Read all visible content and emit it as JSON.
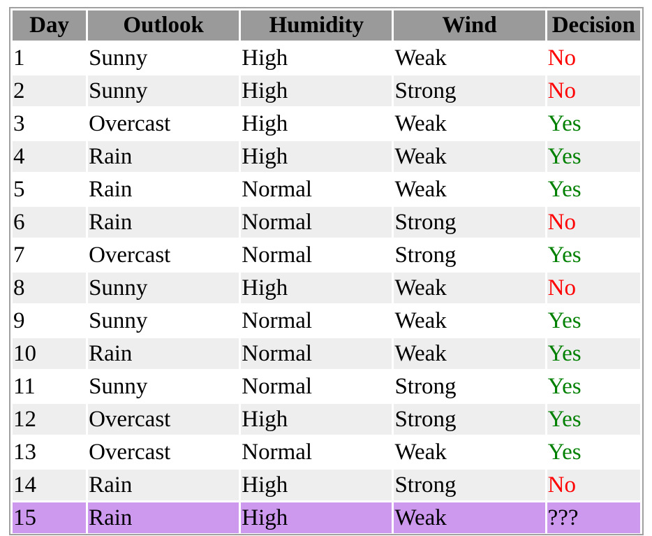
{
  "table": {
    "headers": [
      "Day",
      "Outlook",
      "Humidity",
      "Wind",
      "Decision"
    ],
    "rows": [
      {
        "day": "1",
        "outlook": "Sunny",
        "humidity": "High",
        "wind": "Weak",
        "decision": "No"
      },
      {
        "day": "2",
        "outlook": "Sunny",
        "humidity": "High",
        "wind": "Strong",
        "decision": "No"
      },
      {
        "day": "3",
        "outlook": "Overcast",
        "humidity": "High",
        "wind": "Weak",
        "decision": "Yes"
      },
      {
        "day": "4",
        "outlook": "Rain",
        "humidity": "High",
        "wind": "Weak",
        "decision": "Yes"
      },
      {
        "day": "5",
        "outlook": "Rain",
        "humidity": "Normal",
        "wind": "Weak",
        "decision": "Yes"
      },
      {
        "day": "6",
        "outlook": "Rain",
        "humidity": "Normal",
        "wind": "Strong",
        "decision": "No"
      },
      {
        "day": "7",
        "outlook": "Overcast",
        "humidity": "Normal",
        "wind": "Strong",
        "decision": "Yes"
      },
      {
        "day": "8",
        "outlook": "Sunny",
        "humidity": "High",
        "wind": "Weak",
        "decision": "No"
      },
      {
        "day": "9",
        "outlook": "Sunny",
        "humidity": "Normal",
        "wind": "Weak",
        "decision": "Yes"
      },
      {
        "day": "10",
        "outlook": "Rain",
        "humidity": "Normal",
        "wind": "Weak",
        "decision": "Yes"
      },
      {
        "day": "11",
        "outlook": "Sunny",
        "humidity": "Normal",
        "wind": "Strong",
        "decision": "Yes"
      },
      {
        "day": "12",
        "outlook": "Overcast",
        "humidity": "High",
        "wind": "Strong",
        "decision": "Yes"
      },
      {
        "day": "13",
        "outlook": "Overcast",
        "humidity": "Normal",
        "wind": "Weak",
        "decision": "Yes"
      },
      {
        "day": "14",
        "outlook": "Rain",
        "humidity": "High",
        "wind": "Strong",
        "decision": "No"
      }
    ],
    "query_row": {
      "day": "15",
      "outlook": "Rain",
      "humidity": "High",
      "wind": "Weak",
      "decision": "???"
    }
  },
  "colors": {
    "yes": "#008000",
    "no": "#ff0000",
    "unknown": "#000000",
    "header_bg": "#9a9a9a",
    "stripe_bg": "#eeeeee",
    "query_bg": "#cc99ee"
  }
}
